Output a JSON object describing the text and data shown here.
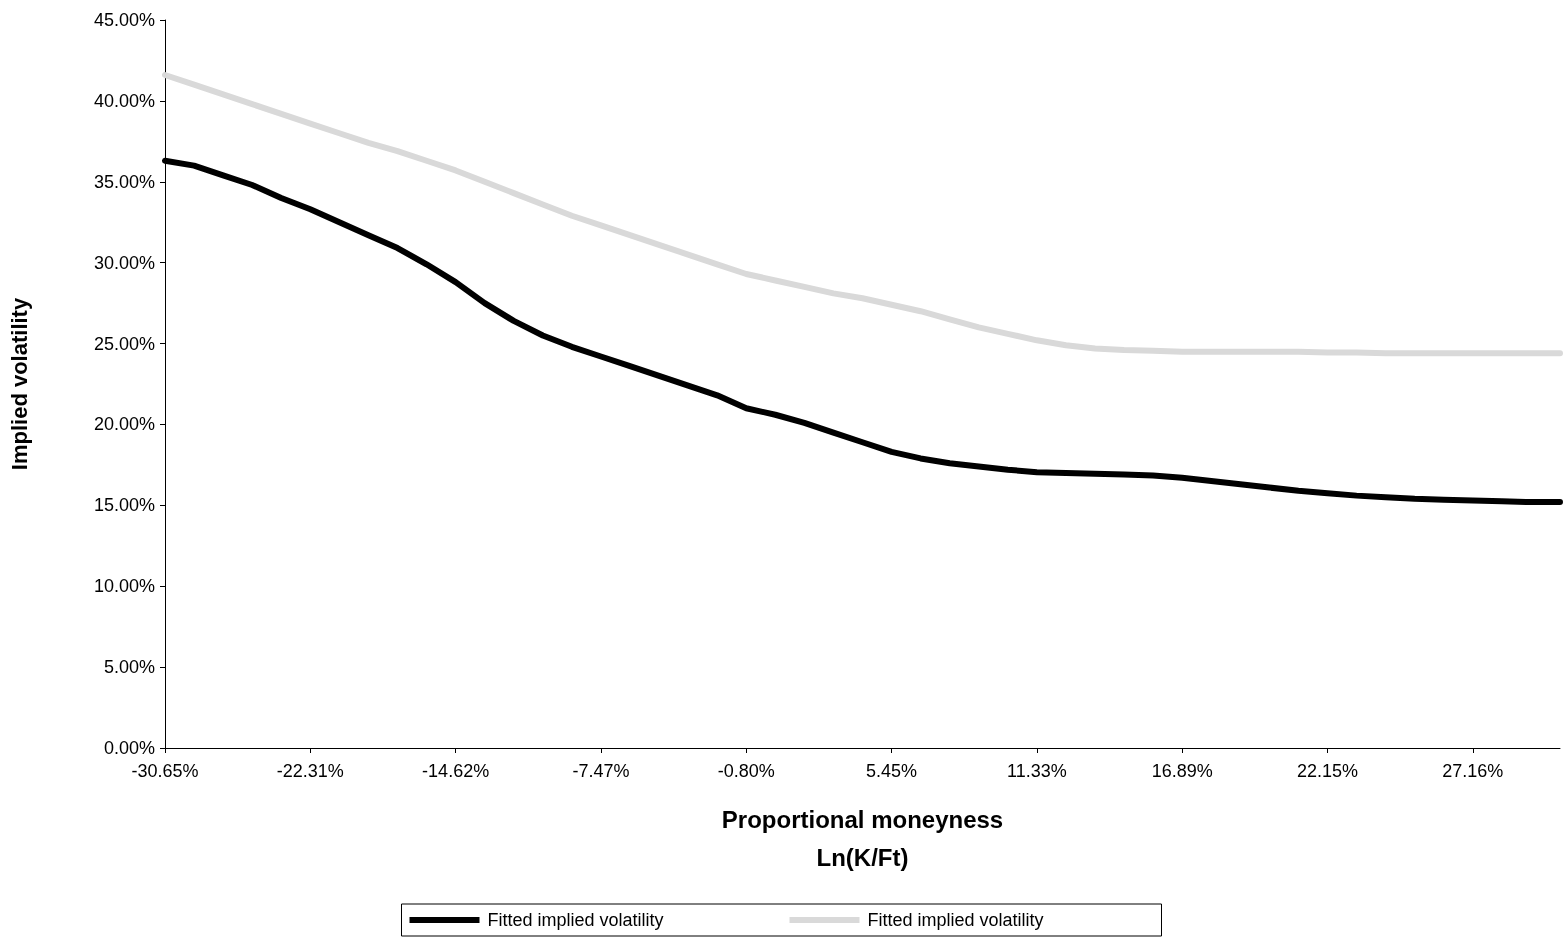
{
  "chart_data": {
    "type": "line",
    "xlabel": "Proportional moneyness\nLn(K/Ft)",
    "ylabel": "Implied volatility",
    "categories": [
      "-30.65%",
      null,
      null,
      null,
      null,
      "-22.31%",
      null,
      null,
      null,
      null,
      "-14.62%",
      null,
      null,
      null,
      null,
      "-7.47%",
      null,
      null,
      null,
      null,
      "-0.80%",
      null,
      null,
      null,
      null,
      "5.45%",
      null,
      null,
      null,
      null,
      "11.33%",
      null,
      null,
      null,
      null,
      "16.89%",
      null,
      null,
      null,
      null,
      "22.15%",
      null,
      null,
      null,
      null,
      "27.16%",
      null,
      null,
      null
    ],
    "series": [
      {
        "name": "Fitted implied volatility",
        "color": "#000000",
        "values": [
          36.3,
          36.0,
          35.4,
          34.8,
          34.0,
          33.3,
          32.5,
          31.7,
          30.9,
          29.9,
          28.8,
          27.5,
          26.4,
          25.5,
          24.8,
          24.2,
          23.6,
          23.0,
          22.4,
          21.8,
          21.0,
          20.6,
          20.1,
          19.5,
          18.9,
          18.3,
          17.9,
          17.6,
          17.4,
          17.2,
          17.05,
          17.0,
          16.95,
          16.9,
          16.85,
          16.7,
          16.5,
          16.3,
          16.1,
          15.9,
          15.75,
          15.6,
          15.5,
          15.4,
          15.35,
          15.3,
          15.25,
          15.2,
          15.2
        ]
      },
      {
        "name": "Fitted implied volatility",
        "color": "#d9d9d9",
        "values": [
          41.6,
          41.0,
          40.4,
          39.8,
          39.2,
          38.6,
          38.0,
          37.4,
          36.9,
          36.3,
          35.7,
          35.0,
          34.3,
          33.6,
          32.9,
          32.3,
          31.7,
          31.1,
          30.5,
          29.9,
          29.3,
          28.9,
          28.5,
          28.1,
          27.8,
          27.4,
          27.0,
          26.5,
          26.0,
          25.6,
          25.2,
          24.9,
          24.7,
          24.6,
          24.55,
          24.5,
          24.5,
          24.5,
          24.5,
          24.5,
          24.45,
          24.45,
          24.4,
          24.4,
          24.4,
          24.4,
          24.4,
          24.4,
          24.4
        ]
      }
    ],
    "ylim": [
      0,
      45
    ],
    "yticks": [
      {
        "value": 0,
        "label": "0.00%"
      },
      {
        "value": 5,
        "label": "5.00%"
      },
      {
        "value": 10,
        "label": "10.00%"
      },
      {
        "value": 15,
        "label": "15.00%"
      },
      {
        "value": 20,
        "label": "20.00%"
      },
      {
        "value": 25,
        "label": "25.00%"
      },
      {
        "value": 30,
        "label": "30.00%"
      },
      {
        "value": 35,
        "label": "35.00%"
      },
      {
        "value": 40,
        "label": "40.00%"
      },
      {
        "value": 45,
        "label": "45.00%"
      }
    ],
    "grid": false,
    "legend": "bottom",
    "marker": "none",
    "line_style": "solid"
  }
}
